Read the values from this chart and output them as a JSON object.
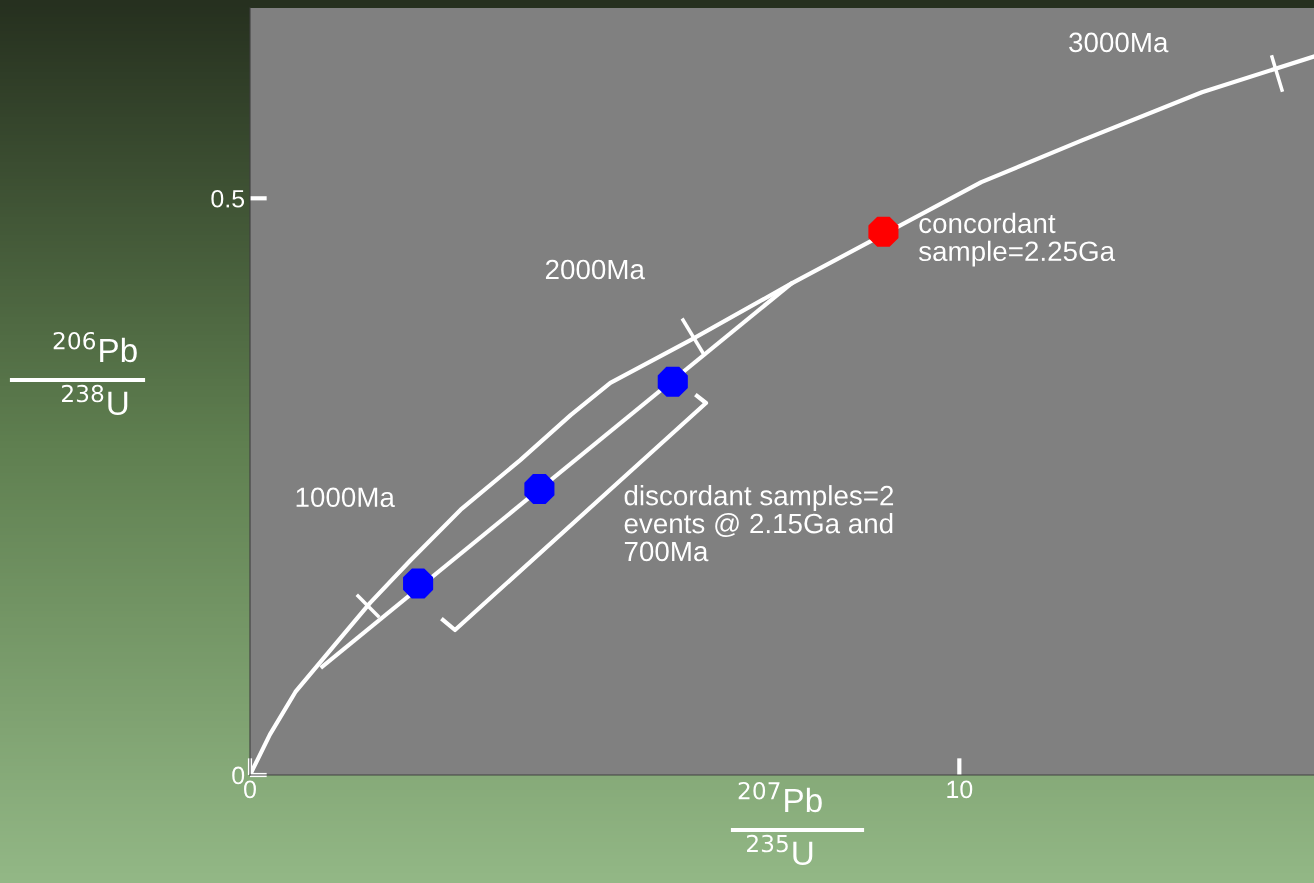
{
  "chart_data": {
    "type": "line",
    "xlabel": "$^{207}$Pb\n$^{235}$U",
    "ylabel": "$^{206}$Pb\n$^{238}$U",
    "xlim": [
      0,
      15
    ],
    "ylim": [
      0,
      0.665
    ],
    "xticks": [
      0,
      10
    ],
    "yticks": [
      0,
      0.5
    ],
    "grid": false,
    "series": [
      {
        "color": "#ffffff",
        "line_style": "solid",
        "x": [
          0,
          0.28,
          0.64,
          1.13,
          1.69,
          2.26,
          2.97,
          3.81,
          4.52,
          5.08,
          6.21,
          7.63,
          10.31,
          11.72,
          13.42,
          15.0
        ],
        "values": [
          0,
          0.035,
          0.072,
          0.108,
          0.149,
          0.186,
          0.23,
          0.273,
          0.312,
          0.34,
          0.377,
          0.426,
          0.514,
          0.55,
          0.592,
          0.623
        ]
      },
      {
        "color": "#ffffff",
        "line_style": "solid",
        "x": [
          1.02,
          7.63
        ],
        "values": [
          0.094,
          0.426
        ]
      },
      {
        "type": "scatter",
        "color": "#0000ff",
        "marker": "circle",
        "x": [
          2.37,
          4.08,
          5.96
        ],
        "values": [
          0.166,
          0.248,
          0.341
        ]
      },
      {
        "type": "scatter",
        "color": "#ff0000",
        "marker": "circle",
        "x": [
          8.93
        ],
        "values": [
          0.471
        ]
      }
    ],
    "annotations": [
      "1000Ma",
      "2000Ma",
      "3000Ma",
      "concordant\nsample=2.25Ga",
      "discordant samples=2\nevents @ 2.15Ga and\n700Ma"
    ]
  }
}
